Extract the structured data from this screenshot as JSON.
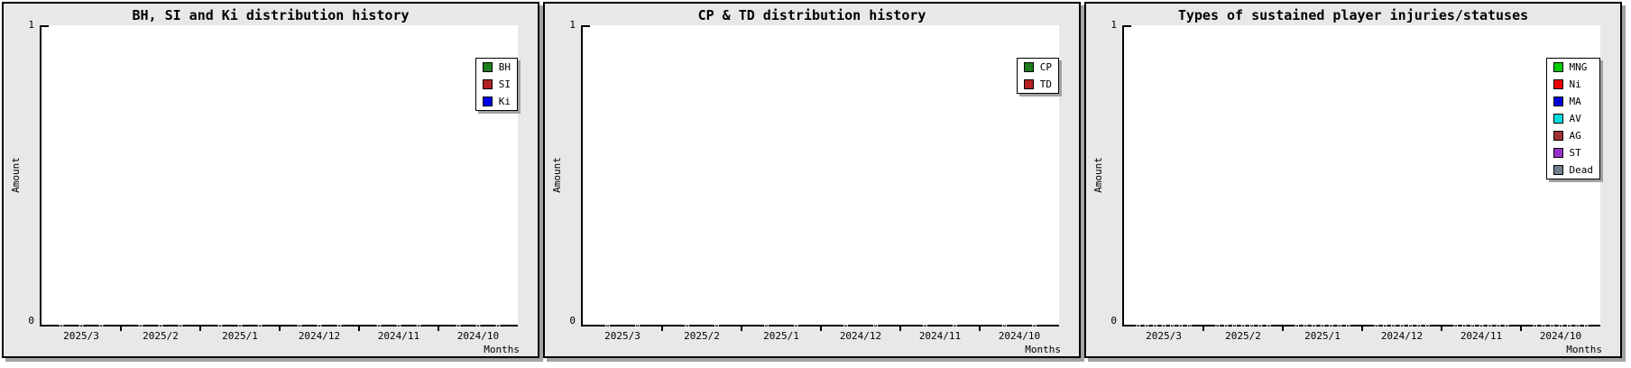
{
  "colors": {
    "panel_background": "#e8e8e8",
    "plot_background": "#ffffff",
    "axis": "#000000",
    "shadow": "#a2a2a2",
    "bar_value_text": "#ffffff"
  },
  "panels": [
    {
      "title": "BH, SI and Ki distribution history",
      "y_axis_label": "Amount",
      "x_axis_label": "Months",
      "y_max_label": "1",
      "y_min_label": "0",
      "zero_label": "0",
      "x_ticks": [
        "2025/3",
        "2025/2",
        "2025/1",
        "2024/12",
        "2024/11",
        "2024/10"
      ],
      "legend": [
        {
          "label": "BH",
          "color": "#1e7e1e"
        },
        {
          "label": "SI",
          "color": "#b22222"
        },
        {
          "label": "Ki",
          "color": "#0000ee"
        }
      ]
    },
    {
      "title": "CP & TD distribution history",
      "y_axis_label": "Amount",
      "x_axis_label": "Months",
      "y_max_label": "1",
      "y_min_label": "0",
      "zero_label": "0",
      "x_ticks": [
        "2025/3",
        "2025/2",
        "2025/1",
        "2024/12",
        "2024/11",
        "2024/10"
      ],
      "legend": [
        {
          "label": "CP",
          "color": "#1e7e1e"
        },
        {
          "label": "TD",
          "color": "#b22222"
        }
      ]
    },
    {
      "title": "Types of sustained player injuries/statuses",
      "y_axis_label": "Amount",
      "x_axis_label": "Months",
      "y_max_label": "1",
      "y_min_label": "0",
      "zero_label": "0",
      "x_ticks": [
        "2025/3",
        "2025/2",
        "2025/1",
        "2024/12",
        "2024/11",
        "2024/10"
      ],
      "legend": [
        {
          "label": "MNG",
          "color": "#00cc00"
        },
        {
          "label": "Ni",
          "color": "#ee0000"
        },
        {
          "label": "MA",
          "color": "#0000dd"
        },
        {
          "label": "AV",
          "color": "#00dddd"
        },
        {
          "label": "AG",
          "color": "#a03232"
        },
        {
          "label": "ST",
          "color": "#9932cc"
        },
        {
          "label": "Dead",
          "color": "#708090"
        }
      ]
    }
  ],
  "chart_data": [
    {
      "type": "bar",
      "title": "BH, SI and Ki distribution history",
      "xlabel": "Months",
      "ylabel": "Amount",
      "ylim": [
        0,
        1
      ],
      "yticks": [
        0,
        1
      ],
      "grid": false,
      "legend_position": "upper right",
      "categories": [
        "2025/3",
        "2025/2",
        "2025/1",
        "2024/12",
        "2024/11",
        "2024/10"
      ],
      "series": [
        {
          "name": "BH",
          "values": [
            0,
            0,
            0,
            0,
            0,
            0
          ]
        },
        {
          "name": "SI",
          "values": [
            0,
            0,
            0,
            0,
            0,
            0
          ]
        },
        {
          "name": "Ki",
          "values": [
            0,
            0,
            0,
            0,
            0,
            0
          ]
        }
      ],
      "bar_value_labels_shown": "0"
    },
    {
      "type": "bar",
      "title": "CP & TD distribution history",
      "xlabel": "Months",
      "ylabel": "Amount",
      "ylim": [
        0,
        1
      ],
      "yticks": [
        0,
        1
      ],
      "grid": false,
      "legend_position": "upper right",
      "categories": [
        "2025/3",
        "2025/2",
        "2025/1",
        "2024/12",
        "2024/11",
        "2024/10"
      ],
      "series": [
        {
          "name": "CP",
          "values": [
            0,
            0,
            0,
            0,
            0,
            0
          ]
        },
        {
          "name": "TD",
          "values": [
            0,
            0,
            0,
            0,
            0,
            0
          ]
        }
      ],
      "bar_value_labels_shown": "0"
    },
    {
      "type": "bar",
      "title": "Types of sustained player injuries/statuses",
      "xlabel": "Months",
      "ylabel": "Amount",
      "ylim": [
        0,
        1
      ],
      "yticks": [
        0,
        1
      ],
      "grid": false,
      "legend_position": "upper right",
      "categories": [
        "2025/3",
        "2025/2",
        "2025/1",
        "2024/12",
        "2024/11",
        "2024/10"
      ],
      "series": [
        {
          "name": "MNG",
          "values": [
            0,
            0,
            0,
            0,
            0,
            0
          ]
        },
        {
          "name": "Ni",
          "values": [
            0,
            0,
            0,
            0,
            0,
            0
          ]
        },
        {
          "name": "MA",
          "values": [
            0,
            0,
            0,
            0,
            0,
            0
          ]
        },
        {
          "name": "AV",
          "values": [
            0,
            0,
            0,
            0,
            0,
            0
          ]
        },
        {
          "name": "AG",
          "values": [
            0,
            0,
            0,
            0,
            0,
            0
          ]
        },
        {
          "name": "ST",
          "values": [
            0,
            0,
            0,
            0,
            0,
            0
          ]
        },
        {
          "name": "Dead",
          "values": [
            0,
            0,
            0,
            0,
            0,
            0
          ]
        }
      ],
      "bar_value_labels_shown": "0"
    }
  ]
}
